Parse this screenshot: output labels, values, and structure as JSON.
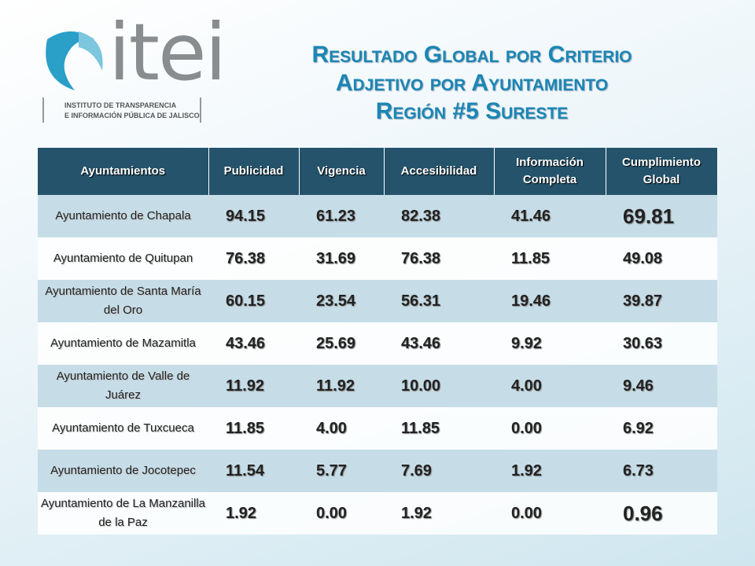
{
  "logo": {
    "name": "itei",
    "line1": "INSTITUTO DE TRANSPARENCIA",
    "line2": "E INFORMACIÓN PÚBLICA DE JALISCO"
  },
  "title": [
    "Resultado Global por Criterio",
    "Adjetivo por Ayuntamiento",
    "Región #5 Sureste"
  ],
  "table": {
    "header": [
      "Ayuntamientos",
      "Publicidad",
      "Vigencia",
      "Accesibilidad",
      "Información Completa",
      "Cumplimiento Global"
    ],
    "rows": [
      [
        "Ayuntamiento de Chapala",
        "94.15",
        "61.23",
        "82.38",
        "41.46",
        "69.81"
      ],
      [
        "Ayuntamiento de Quitupan",
        "76.38",
        "31.69",
        "76.38",
        "11.85",
        "49.08"
      ],
      [
        "Ayuntamiento de Santa María del Oro",
        "60.15",
        "23.54",
        "56.31",
        "19.46",
        "39.87"
      ],
      [
        "Ayuntamiento de Mazamitla",
        "43.46",
        "25.69",
        "43.46",
        "9.92",
        "30.63"
      ],
      [
        "Ayuntamiento de Valle de Juárez",
        "11.92",
        "11.92",
        "10.00",
        "4.00",
        "9.46"
      ],
      [
        "Ayuntamiento de Tuxcueca",
        "11.85",
        "4.00",
        "11.85",
        "0.00",
        "6.92"
      ],
      [
        "Ayuntamiento de Jocotepec",
        "11.54",
        "5.77",
        "7.69",
        "1.92",
        "6.73"
      ],
      [
        "Ayuntamiento de La Manzanilla de la Paz",
        "1.92",
        "0.00",
        "1.92",
        "0.00",
        "0.96"
      ]
    ]
  }
}
